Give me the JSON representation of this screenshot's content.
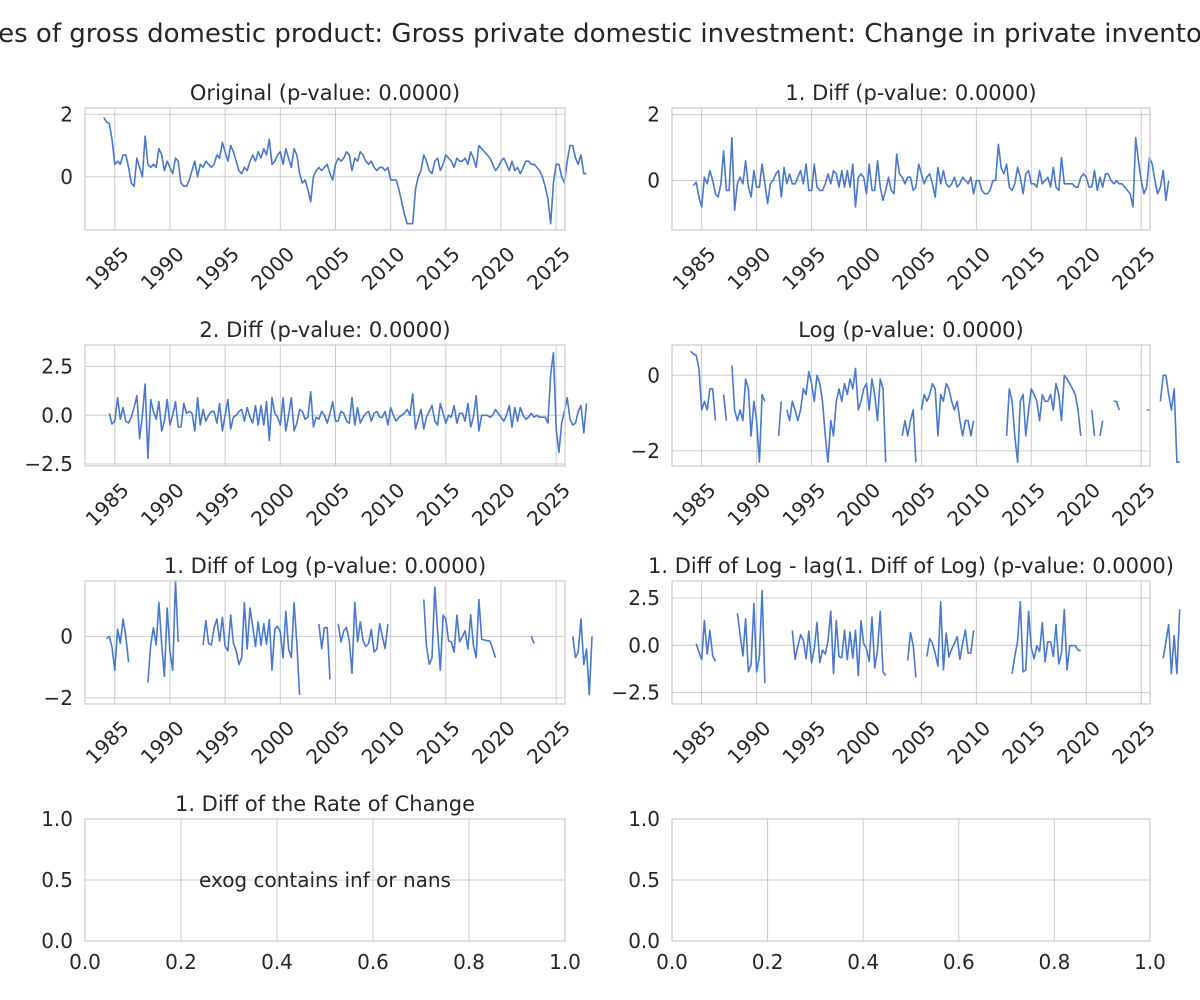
{
  "figure": {
    "suptitle": "es of gross domestic product: Gross private domestic investment: Change in private invento"
  },
  "style": {
    "line_color": "#4878d0",
    "grid_color": "#cccccc",
    "text_color": "#262626"
  },
  "chart_data": [
    {
      "type": "line",
      "title": "Original (p-value: 0.0000)",
      "x_is_time": true,
      "xlim": [
        1982.3,
        2025.8
      ],
      "ylim": [
        -1.7,
        2.2
      ],
      "xticks": [
        1985,
        1990,
        1995,
        2000,
        2005,
        2010,
        2015,
        2020,
        2025
      ],
      "yticks": [
        0,
        2
      ],
      "grid": true,
      "start": 1984.0,
      "step": 0.25,
      "values": [
        1.9,
        1.75,
        1.7,
        1.2,
        0.4,
        0.5,
        0.4,
        0.7,
        0.7,
        0.3,
        -0.2,
        -0.3,
        0.6,
        0.3,
        0.0,
        1.3,
        0.4,
        0.3,
        0.4,
        0.3,
        0.9,
        0.7,
        0.2,
        0.5,
        0.3,
        0.1,
        0.6,
        0.5,
        -0.2,
        -0.3,
        -0.3,
        -0.1,
        0.2,
        0.5,
        0.0,
        0.4,
        0.3,
        0.5,
        0.4,
        0.3,
        0.4,
        0.7,
        0.6,
        1.1,
        0.8,
        0.5,
        1.0,
        0.8,
        0.5,
        0.2,
        0.1,
        0.3,
        0.2,
        0.5,
        0.7,
        0.5,
        0.8,
        0.6,
        0.9,
        0.7,
        1.2,
        0.4,
        0.5,
        0.7,
        0.8,
        0.4,
        0.9,
        0.6,
        0.3,
        0.9,
        0.7,
        0.1,
        -0.2,
        -0.1,
        -0.4,
        -0.8,
        0.0,
        0.2,
        0.3,
        0.2,
        0.3,
        0.4,
        0.1,
        -0.1,
        0.4,
        0.6,
        0.5,
        0.6,
        0.8,
        0.7,
        0.2,
        0.6,
        0.5,
        0.8,
        0.7,
        0.5,
        0.4,
        0.5,
        0.3,
        0.2,
        0.3,
        0.3,
        0.2,
        0.3,
        -0.1,
        -0.1,
        -0.1,
        -0.4,
        -0.8,
        -1.2,
        -1.5,
        -1.5,
        -1.5,
        -0.4,
        0.0,
        0.2,
        0.7,
        0.5,
        0.2,
        0.1,
        0.5,
        0.6,
        0.2,
        0.4,
        0.7,
        0.6,
        0.5,
        0.3,
        0.6,
        0.5,
        0.5,
        0.6,
        0.4,
        0.8,
        0.6,
        0.3,
        1.0,
        0.9,
        0.8,
        0.7,
        0.6,
        0.4,
        0.2,
        0.3,
        0.5,
        0.6,
        0.4,
        0.2,
        0.5,
        0.2,
        0.3,
        0.1,
        0.3,
        0.5,
        0.5,
        0.4,
        0.4,
        0.3,
        0.2,
        0.0,
        -0.3,
        -0.7,
        -1.5,
        -0.2,
        0.4,
        0.4,
        0.0,
        -0.2,
        0.5,
        1.0,
        1.0,
        0.6,
        0.4,
        0.7,
        0.1,
        0.1
      ]
    },
    {
      "type": "line",
      "title": "1. Diff (p-value: 0.0000)",
      "x_is_time": true,
      "xlim": [
        1982.3,
        2025.8
      ],
      "ylim": [
        -1.5,
        2.2
      ],
      "xticks": [
        1985,
        1990,
        1995,
        2000,
        2005,
        2010,
        2015,
        2020,
        2025
      ],
      "yticks": [
        0,
        2
      ],
      "grid": true,
      "start": 1984.25,
      "step": 0.25,
      "values": [
        -0.15,
        -0.05,
        -0.5,
        -0.8,
        0.1,
        -0.1,
        0.3,
        0.0,
        -0.4,
        -0.5,
        -0.1,
        0.9,
        -0.3,
        -0.3,
        1.3,
        -0.9,
        -0.1,
        0.1,
        -0.1,
        0.6,
        -0.2,
        -0.5,
        0.3,
        -0.2,
        -0.2,
        0.5,
        -0.1,
        -0.7,
        -0.1,
        0.0,
        0.2,
        0.3,
        -0.5,
        0.4,
        -0.1,
        0.2,
        -0.1,
        -0.1,
        0.1,
        0.3,
        -0.1,
        0.5,
        -0.3,
        -0.3,
        0.5,
        -0.2,
        -0.3,
        -0.3,
        -0.1,
        0.2,
        -0.1,
        0.3,
        0.2,
        -0.2,
        0.3,
        -0.2,
        0.3,
        -0.2,
        0.5,
        -0.8,
        0.1,
        0.2,
        0.1,
        -0.4,
        0.5,
        -0.3,
        -0.3,
        0.6,
        -0.2,
        -0.6,
        -0.3,
        0.1,
        -0.3,
        -0.4,
        0.8,
        0.2,
        0.1,
        -0.1,
        0.1,
        0.1,
        -0.3,
        -0.2,
        0.5,
        0.2,
        -0.1,
        0.1,
        0.2,
        -0.1,
        -0.5,
        0.4,
        -0.1,
        0.3,
        -0.1,
        -0.2,
        -0.1,
        0.1,
        -0.2,
        -0.1,
        0.1,
        0.0,
        -0.1,
        0.1,
        -0.4,
        0.0,
        0.0,
        -0.3,
        -0.4,
        -0.4,
        -0.3,
        0.0,
        0.0,
        1.1,
        0.4,
        0.2,
        0.5,
        -0.2,
        -0.3,
        -0.1,
        0.4,
        0.1,
        -0.4,
        0.2,
        0.3,
        -0.1,
        -0.1,
        -0.2,
        0.3,
        -0.1,
        0.0,
        0.1,
        -0.2,
        0.4,
        -0.2,
        -0.3,
        0.7,
        -0.1,
        -0.1,
        -0.1,
        -0.1,
        -0.2,
        -0.2,
        0.1,
        0.2,
        0.1,
        -0.2,
        -0.2,
        0.3,
        -0.3,
        0.1,
        -0.2,
        0.2,
        0.2,
        0.0,
        -0.1,
        0.0,
        -0.1,
        -0.1,
        -0.2,
        -0.3,
        -0.4,
        -0.8,
        1.3,
        0.6,
        0.0,
        -0.4,
        -0.2,
        0.7,
        0.5,
        0.0,
        -0.4,
        -0.2,
        0.3,
        -0.6,
        0.0
      ]
    },
    {
      "type": "line",
      "title": "2. Diff (p-value: 0.0000)",
      "x_is_time": true,
      "xlim": [
        1982.3,
        2025.8
      ],
      "ylim": [
        -2.6,
        3.6
      ],
      "xticks": [
        1985,
        1990,
        1995,
        2000,
        2005,
        2010,
        2015,
        2020,
        2025
      ],
      "yticks": [
        -2.5,
        0.0,
        2.5
      ],
      "ytick_labels": [
        "−2.5",
        "0.0",
        "2.5"
      ],
      "grid": true,
      "start": 1984.5,
      "step": 0.25,
      "values": [
        0.1,
        -0.45,
        -0.3,
        0.9,
        -0.2,
        0.4,
        -0.3,
        -0.4,
        -0.1,
        0.4,
        1.0,
        -1.2,
        0.0,
        1.6,
        -2.2,
        0.8,
        0.2,
        -0.2,
        0.7,
        -0.8,
        -0.3,
        0.8,
        -0.5,
        0.0,
        0.7,
        -0.6,
        -0.6,
        0.6,
        0.1,
        0.2,
        0.1,
        -0.8,
        0.9,
        -0.5,
        0.3,
        -0.3,
        0.0,
        0.2,
        0.2,
        -0.4,
        0.6,
        -0.8,
        0.0,
        0.8,
        -0.7,
        -0.1,
        0.0,
        0.2,
        0.3,
        -0.3,
        0.4,
        -0.1,
        -0.4,
        0.5,
        -0.5,
        0.5,
        -0.5,
        0.7,
        -1.3,
        0.9,
        0.1,
        -0.1,
        -0.5,
        0.9,
        -0.8,
        0.0,
        0.9,
        -0.8,
        -0.4,
        0.3,
        0.2,
        -0.2,
        -0.1,
        1.2,
        -0.6,
        -0.1,
        -0.2,
        0.2,
        0.0,
        -0.4,
        0.1,
        0.7,
        -0.3,
        -0.3,
        0.2,
        0.1,
        -0.3,
        -0.4,
        0.9,
        -0.5,
        0.4,
        -0.4,
        -0.1,
        0.1,
        0.2,
        -0.3,
        0.1,
        0.2,
        -0.1,
        -0.1,
        0.2,
        -0.5,
        0.4,
        0.0,
        -0.3,
        -0.1,
        0.0,
        0.1,
        0.3,
        0.0,
        1.1,
        -0.7,
        -0.2,
        0.3,
        -0.7,
        -0.1,
        0.2,
        0.5,
        -0.3,
        -0.5,
        0.6,
        0.1,
        -0.4,
        0.0,
        -0.1,
        0.5,
        -0.4,
        0.1,
        0.1,
        -0.3,
        0.6,
        -0.6,
        -0.1,
        1.0,
        -0.8,
        0.0,
        0.0,
        0.0,
        -0.1,
        0.0,
        0.3,
        0.1,
        -0.1,
        -0.3,
        0.0,
        0.5,
        -0.6,
        0.4,
        -0.3,
        0.4,
        0.0,
        -0.2,
        -0.1,
        0.1,
        -0.1,
        0.0,
        -0.1,
        -0.1,
        -0.1,
        -0.4,
        2.1,
        3.2,
        -0.7,
        -1.9,
        -0.4,
        0.2,
        0.9,
        -0.2,
        -0.5,
        -0.4,
        0.2,
        0.5,
        -0.9,
        0.6
      ]
    },
    {
      "type": "line",
      "title": "Log (p-value: 0.0000)",
      "x_is_time": true,
      "xlim": [
        1982.3,
        2025.8
      ],
      "ylim": [
        -2.4,
        0.8
      ],
      "xticks": [
        1985,
        1990,
        1995,
        2000,
        2005,
        2010,
        2015,
        2020,
        2025
      ],
      "yticks": [
        -2,
        0
      ],
      "ytick_labels": [
        "−2",
        "0"
      ],
      "grid": true,
      "start": 1984.0,
      "step": 0.25,
      "values": [
        0.64,
        0.56,
        0.53,
        0.18,
        -0.92,
        -0.69,
        -0.92,
        -0.36,
        -0.36,
        -1.2,
        null,
        null,
        -0.51,
        -1.2,
        null,
        0.26,
        -0.92,
        -1.2,
        -0.92,
        -1.2,
        -0.1,
        -0.36,
        -1.6,
        -0.69,
        -1.2,
        -2.3,
        -0.51,
        -0.69,
        null,
        null,
        null,
        null,
        -1.6,
        -0.69,
        null,
        -0.92,
        -1.2,
        -0.69,
        -0.92,
        -1.2,
        -0.92,
        -0.36,
        -0.51,
        0.1,
        -0.22,
        -0.69,
        0.0,
        -0.22,
        -0.69,
        -1.6,
        -2.3,
        -1.2,
        -1.6,
        -0.69,
        -0.36,
        -0.69,
        -0.22,
        -0.51,
        -0.1,
        -0.36,
        0.18,
        -0.92,
        -0.69,
        -0.36,
        -0.22,
        -0.92,
        -0.1,
        -0.51,
        -1.2,
        -0.1,
        -0.36,
        -2.3,
        null,
        null,
        null,
        null,
        null,
        -1.6,
        -1.2,
        -1.6,
        -1.2,
        -0.92,
        -2.3,
        null,
        -0.92,
        -0.51,
        -0.69,
        -0.51,
        -0.22,
        -0.36,
        -1.6,
        -0.51,
        -0.69,
        -0.22,
        -0.36,
        -0.69,
        -0.92,
        -0.69,
        -1.2,
        -1.6,
        -1.2,
        -1.2,
        -1.6,
        -1.2,
        null,
        null,
        null,
        null,
        null,
        null,
        null,
        null,
        null,
        null,
        null,
        -1.6,
        -0.36,
        -0.69,
        -1.6,
        -2.3,
        -0.69,
        -0.51,
        -1.6,
        -0.92,
        -0.36,
        -0.51,
        -0.69,
        -1.2,
        -0.51,
        -0.69,
        -0.69,
        -0.51,
        -0.92,
        -0.22,
        -0.51,
        -1.2,
        0.0,
        -0.1,
        -0.22,
        -0.36,
        -0.51,
        -0.92,
        -1.6,
        null,
        null,
        null,
        -0.92,
        -1.6,
        null,
        -1.6,
        -1.2,
        null,
        -2.3,
        null,
        -0.69,
        -0.69,
        -0.92,
        null,
        null,
        null,
        null,
        null,
        null,
        null,
        -2.3,
        null,
        -0.92,
        -0.92,
        null,
        null,
        null,
        -0.69,
        0.0,
        0.0,
        -0.51,
        -0.92,
        -0.36,
        -2.3,
        -2.3
      ]
    },
    {
      "type": "line",
      "title": "1. Diff of Log (p-value: 0.0000)",
      "x_is_time": true,
      "xlim": [
        1982.3,
        2025.8
      ],
      "ylim": [
        -2.2,
        1.8
      ],
      "xticks": [
        1985,
        1990,
        1995,
        2000,
        2005,
        2010,
        2015,
        2020,
        2025
      ],
      "yticks": [
        -2,
        0
      ],
      "ytick_labels": [
        "−2",
        "0"
      ],
      "grid": true,
      "start": 1984.25,
      "step": 0.25,
      "values": [
        -0.08,
        0.0,
        -0.35,
        -1.1,
        0.23,
        -0.23,
        0.56,
        0.0,
        -0.84,
        null,
        null,
        null,
        -0.69,
        null,
        null,
        -1.5,
        -0.28,
        0.28,
        -0.28,
        1.1,
        -0.26,
        -1.3,
        0.92,
        -0.51,
        -1.1,
        1.8,
        -0.18,
        null,
        null,
        null,
        null,
        null,
        0.92,
        null,
        null,
        -0.28,
        0.51,
        -0.23,
        -0.28,
        0.28,
        0.56,
        -0.15,
        0.61,
        -0.32,
        -0.47,
        0.69,
        -0.22,
        -0.47,
        -0.92,
        -0.69,
        1.1,
        -0.41,
        0.92,
        0.33,
        -0.33,
        0.47,
        -0.29,
        0.41,
        -0.26,
        0.54,
        -1.1,
        0.23,
        0.33,
        0.14,
        -0.7,
        0.82,
        -0.41,
        -0.69,
        1.1,
        -0.26,
        -1.9,
        null,
        null,
        null,
        null,
        null,
        null,
        0.4,
        -0.4,
        0.28,
        0.28,
        -1.4,
        null,
        null,
        0.41,
        -0.18,
        0.18,
        0.29,
        -0.14,
        -1.2,
        1.1,
        -0.18,
        0.47,
        -0.14,
        -0.33,
        -0.23,
        0.23,
        -0.51,
        -0.41,
        0.41,
        0.0,
        -0.4,
        0.4,
        null,
        null,
        null,
        null,
        null,
        null,
        null,
        null,
        null,
        null,
        null,
        null,
        1.2,
        -0.33,
        -0.91,
        -0.7,
        1.6,
        0.18,
        -1.1,
        0.69,
        0.56,
        -0.15,
        -0.18,
        -0.51,
        0.69,
        -0.18,
        0.0,
        0.18,
        -0.41,
        0.7,
        -0.29,
        -0.69,
        1.2,
        -0.1,
        -0.12,
        -0.14,
        -0.15,
        -0.41,
        -0.69,
        null,
        null,
        null,
        null,
        -0.69,
        null,
        null,
        0.4,
        null,
        null,
        null,
        null,
        0.0,
        -0.23,
        null,
        null,
        null,
        null,
        null,
        null,
        null,
        null,
        null,
        null,
        null,
        null,
        null,
        0.0,
        -0.69,
        -0.51,
        0.56,
        -0.92,
        -0.41,
        -1.9,
        0.0
      ]
    },
    {
      "type": "line",
      "title": "1. Diff of Log - lag(1. Diff of Log) (p-value: 0.0000)",
      "x_is_time": true,
      "xlim": [
        1982.3,
        2025.8
      ],
      "ylim": [
        -3.1,
        3.4
      ],
      "xticks": [
        1985,
        1990,
        1995,
        2000,
        2005,
        2010,
        2015,
        2020,
        2025
      ],
      "yticks": [
        -2.5,
        0.0,
        2.5
      ],
      "ytick_labels": [
        "−2.5",
        "0.0",
        "2.5"
      ],
      "grid": true,
      "start": 1984.5,
      "step": 0.25,
      "values": [
        0.08,
        -0.35,
        -0.75,
        1.3,
        -0.46,
        0.79,
        -0.56,
        -0.84,
        null,
        null,
        null,
        null,
        null,
        null,
        null,
        1.7,
        0.56,
        -0.56,
        1.4,
        -1.4,
        -1.0,
        2.2,
        -1.4,
        -0.59,
        2.9,
        -2.0,
        null,
        null,
        null,
        null,
        null,
        null,
        null,
        null,
        null,
        0.79,
        -0.74,
        -0.05,
        0.56,
        0.28,
        -0.71,
        0.76,
        -0.93,
        -0.15,
        1.2,
        -0.91,
        -0.25,
        -0.45,
        0.23,
        1.8,
        -1.5,
        1.3,
        -0.59,
        -0.66,
        0.8,
        -0.76,
        0.7,
        -0.67,
        0.8,
        -1.6,
        1.3,
        0.1,
        -0.19,
        -0.84,
        1.5,
        -1.2,
        -0.28,
        1.8,
        -1.4,
        -1.6,
        null,
        null,
        null,
        null,
        null,
        null,
        null,
        -0.8,
        0.68,
        0.0,
        -1.7,
        null,
        null,
        null,
        -0.59,
        0.36,
        0.11,
        -0.43,
        -1.1,
        2.3,
        -1.3,
        0.65,
        -0.61,
        -0.19,
        0.1,
        0.46,
        -0.74,
        0.1,
        0.82,
        -0.41,
        -0.4,
        0.8,
        null,
        null,
        null,
        null,
        null,
        null,
        null,
        null,
        null,
        null,
        null,
        null,
        null,
        -1.5,
        -0.58,
        0.21,
        2.3,
        -1.4,
        -1.3,
        1.8,
        -0.13,
        -0.71,
        -0.03,
        -0.33,
        1.2,
        -0.87,
        0.18,
        0.18,
        -0.59,
        1.1,
        -0.99,
        -0.4,
        1.9,
        -1.3,
        -0.02,
        -0.02,
        -0.01,
        -0.26,
        -0.28,
        null,
        null,
        null,
        null,
        null,
        null,
        null,
        null,
        null,
        null,
        null,
        null,
        null,
        null,
        -0.23,
        null,
        null,
        null,
        null,
        null,
        null,
        null,
        null,
        null,
        null,
        null,
        null,
        null,
        null,
        -0.69,
        0.18,
        1.1,
        -1.5,
        0.51,
        -1.5,
        1.9
      ]
    },
    {
      "type": "line",
      "title": "1. Diff of the Rate of Change",
      "x_is_time": false,
      "xlim": [
        0.0,
        1.0
      ],
      "ylim": [
        0.0,
        1.0
      ],
      "xticks": [
        0.0,
        0.2,
        0.4,
        0.6,
        0.8,
        1.0
      ],
      "xtick_labels": [
        "0.0",
        "0.2",
        "0.4",
        "0.6",
        "0.8",
        "1.0"
      ],
      "yticks": [
        0.0,
        0.5,
        1.0
      ],
      "ytick_labels": [
        "0.0",
        "0.5",
        "1.0"
      ],
      "grid": true,
      "annotation": "exog contains inf or nans",
      "values": []
    },
    {
      "type": "line",
      "title": "",
      "x_is_time": false,
      "xlim": [
        0.0,
        1.0
      ],
      "ylim": [
        0.0,
        1.0
      ],
      "xticks": [
        0.0,
        0.2,
        0.4,
        0.6,
        0.8,
        1.0
      ],
      "xtick_labels": [
        "0.0",
        "0.2",
        "0.4",
        "0.6",
        "0.8",
        "1.0"
      ],
      "yticks": [
        0.0,
        0.5,
        1.0
      ],
      "ytick_labels": [
        "0.0",
        "0.5",
        "1.0"
      ],
      "grid": true,
      "values": []
    }
  ]
}
